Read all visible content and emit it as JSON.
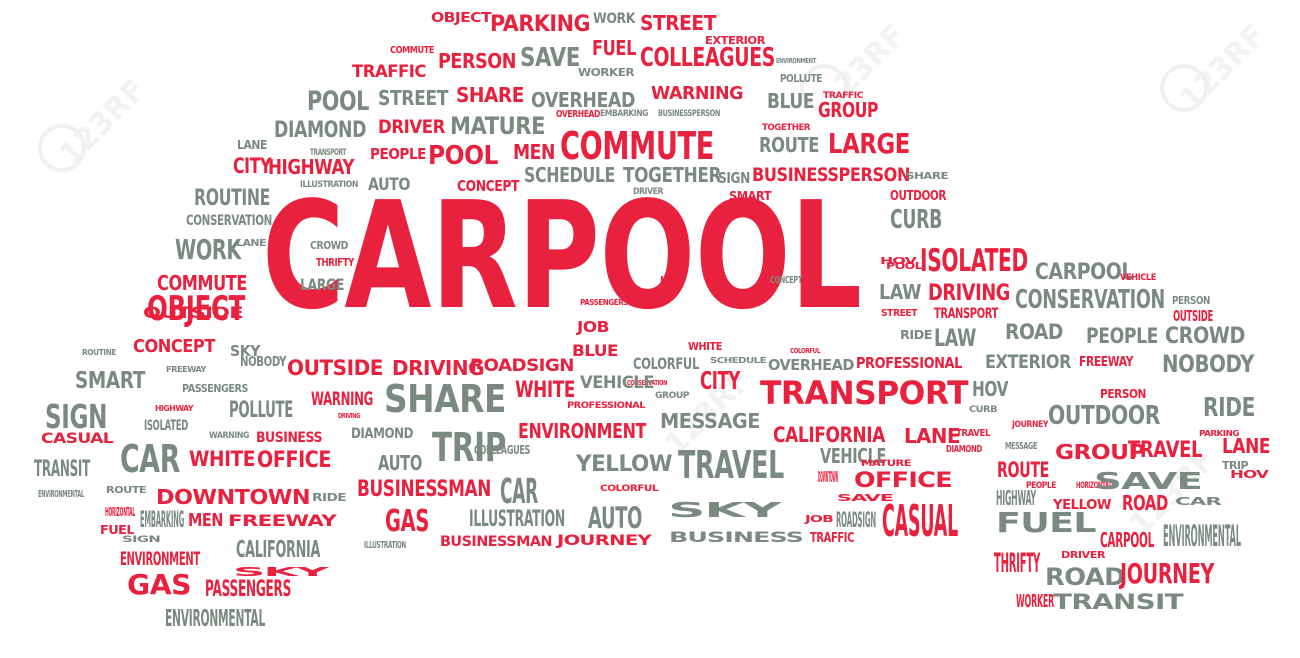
{
  "colors": {
    "red": "#e8213f",
    "gray": "#7a8a80"
  },
  "watermark": "123RF",
  "hero": "CARPOOL",
  "words": [
    [
      "OBJECT",
      "r"
    ],
    [
      "PARKING",
      "r"
    ],
    [
      "WORK",
      "g"
    ],
    [
      "STREET",
      "r"
    ],
    [
      "EXTERIOR",
      "r"
    ],
    [
      "COMMUTE",
      "r"
    ],
    [
      "PERSON",
      "r"
    ],
    [
      "SAVE",
      "g"
    ],
    [
      "FUEL",
      "r"
    ],
    [
      "COLLEAGUES",
      "r"
    ],
    [
      "ENVIRONMENT",
      "g"
    ],
    [
      "TRAFFIC",
      "r"
    ],
    [
      "WORKER",
      "g"
    ],
    [
      "POLLUTE",
      "g"
    ],
    [
      "TRAFFIC",
      "r"
    ],
    [
      "POOL",
      "g"
    ],
    [
      "STREET",
      "g"
    ],
    [
      "SHARE",
      "r"
    ],
    [
      "OVERHEAD",
      "g"
    ],
    [
      "WARNING",
      "r"
    ],
    [
      "BLUE",
      "g"
    ],
    [
      "GROUP",
      "r"
    ],
    [
      "DIAMOND",
      "g"
    ],
    [
      "DRIVER",
      "r"
    ],
    [
      "MATURE",
      "g"
    ],
    [
      "OVERHEAD",
      "r"
    ],
    [
      "EMBARKING",
      "g"
    ],
    [
      "BUSINESSPERSON",
      "g"
    ],
    [
      "TOGETHER",
      "r"
    ],
    [
      "LANE",
      "g"
    ],
    [
      "TRANSPORT",
      "g"
    ],
    [
      "CITY",
      "r"
    ],
    [
      "HIGHWAY",
      "r"
    ],
    [
      "PEOPLE",
      "r"
    ],
    [
      "POOL",
      "r"
    ],
    [
      "MEN",
      "r"
    ],
    [
      "COMMUTE",
      "r"
    ],
    [
      "ROUTE",
      "g"
    ],
    [
      "LARGE",
      "r"
    ],
    [
      "ILLUSTRATION",
      "g"
    ],
    [
      "AUTO",
      "g"
    ],
    [
      "CONCEPT",
      "r"
    ],
    [
      "SCHEDULE",
      "g"
    ],
    [
      "TOGETHER",
      "g"
    ],
    [
      "SIGN",
      "g"
    ],
    [
      "BUSINESSPERSON",
      "r"
    ],
    [
      "SHARE",
      "g"
    ],
    [
      "ROUTINE",
      "g"
    ],
    [
      "DRIVER",
      "g"
    ],
    [
      "SMART",
      "r"
    ],
    [
      "OUTDOOR",
      "r"
    ],
    [
      "CONSERVATION",
      "g"
    ],
    [
      "CURB",
      "g"
    ],
    [
      "WORK",
      "g"
    ],
    [
      "CROWD",
      "g"
    ],
    [
      "LANE",
      "g"
    ],
    [
      "THRIFTY",
      "r"
    ],
    [
      "HOV",
      "r"
    ],
    [
      "POOL",
      "r"
    ],
    [
      "ISOLATED",
      "r"
    ],
    [
      "COMMUTE",
      "r"
    ],
    [
      "LARGE",
      "g"
    ],
    [
      "LAW",
      "r"
    ],
    [
      "CONCEPT",
      "g"
    ],
    [
      "CARPOOL",
      "g"
    ],
    [
      "VEHICLE",
      "r"
    ],
    [
      "OBJECT",
      "r"
    ],
    [
      "PASSENGERS",
      "r"
    ],
    [
      "LAW",
      "g"
    ],
    [
      "DRIVING",
      "r"
    ],
    [
      "CONSERVATION",
      "g"
    ],
    [
      "PERSON",
      "g"
    ],
    [
      "OUTSIDE",
      "r"
    ],
    [
      "STREET",
      "r"
    ],
    [
      "TRANSPORT",
      "r"
    ],
    [
      "OUTSIDE",
      "r"
    ],
    [
      "JOB",
      "r"
    ],
    [
      "RIDE",
      "g"
    ],
    [
      "LAW",
      "g"
    ],
    [
      "ROAD",
      "g"
    ],
    [
      "PEOPLE",
      "g"
    ],
    [
      "CROWD",
      "g"
    ],
    [
      "CONCEPT",
      "r"
    ],
    [
      "SKY",
      "g"
    ],
    [
      "BLUE",
      "r"
    ],
    [
      "WHITE",
      "r"
    ],
    [
      "COLORFUL",
      "g"
    ],
    [
      "PROFESSIONAL",
      "r"
    ],
    [
      "ROUTINE",
      "g"
    ],
    [
      "NOBODY",
      "g"
    ],
    [
      "COLORFUL",
      "r"
    ],
    [
      "SCHEDULE",
      "g"
    ],
    [
      "EXTERIOR",
      "g"
    ],
    [
      "FREEWAY",
      "r"
    ],
    [
      "NOBODY",
      "g"
    ],
    [
      "OUTSIDE",
      "r"
    ],
    [
      "DRIVING",
      "r"
    ],
    [
      "ROADSIGN",
      "r"
    ],
    [
      "SMART",
      "g"
    ],
    [
      "FREEWAY",
      "g"
    ],
    [
      "CITY",
      "r"
    ],
    [
      "OVERHEAD",
      "g"
    ],
    [
      "CONSERVATION",
      "r"
    ],
    [
      "PASSENGERS",
      "g"
    ],
    [
      "POLLUTE",
      "g"
    ],
    [
      "WARNING",
      "r"
    ],
    [
      "SHARE",
      "g"
    ],
    [
      "WHITE",
      "r"
    ],
    [
      "VEHICLE",
      "g"
    ],
    [
      "TRANSPORT",
      "r"
    ],
    [
      "HOV",
      "g"
    ],
    [
      "PERSON",
      "r"
    ],
    [
      "SIGN",
      "g"
    ],
    [
      "HIGHWAY",
      "r"
    ],
    [
      "ISOLATED",
      "g"
    ],
    [
      "DRIVING",
      "r"
    ],
    [
      "PROFESSIONAL",
      "r"
    ],
    [
      "GROUP",
      "g"
    ],
    [
      "MESSAGE",
      "g"
    ],
    [
      "CURB",
      "g"
    ],
    [
      "OUTDOOR",
      "g"
    ],
    [
      "RIDE",
      "g"
    ],
    [
      "DIAMOND",
      "g"
    ],
    [
      "JOURNEY",
      "r"
    ],
    [
      "CASUAL",
      "r"
    ],
    [
      "WARNING",
      "g"
    ],
    [
      "BUSINESS",
      "r"
    ],
    [
      "TRIP",
      "g"
    ],
    [
      "ENVIRONMENT",
      "r"
    ],
    [
      "CALIFORNIA",
      "r"
    ],
    [
      "LANE",
      "r"
    ],
    [
      "TRAVEL",
      "r"
    ],
    [
      "PARKING",
      "r"
    ],
    [
      "MESSAGE",
      "g"
    ],
    [
      "LANE",
      "r"
    ],
    [
      "CAR",
      "g"
    ],
    [
      "WHITE",
      "r"
    ],
    [
      "OFFICE",
      "r"
    ],
    [
      "AUTO",
      "g"
    ],
    [
      "COLLEAGUES",
      "g"
    ],
    [
      "YELLOW",
      "g"
    ],
    [
      "TRAVEL",
      "g"
    ],
    [
      "VEHICLE",
      "g"
    ],
    [
      "DIAMOND",
      "r"
    ],
    [
      "ROUTE",
      "r"
    ],
    [
      "GROUP",
      "r"
    ],
    [
      "TRAVEL",
      "r"
    ],
    [
      "TRIP",
      "g"
    ],
    [
      "TRANSIT",
      "g"
    ],
    [
      "MATURE",
      "r"
    ],
    [
      "ENVIRONMENTAL",
      "g"
    ],
    [
      "ROUTE",
      "g"
    ],
    [
      "DOWNTOWN",
      "r"
    ],
    [
      "RIDE",
      "g"
    ],
    [
      "BUSINESSMAN",
      "r"
    ],
    [
      "CAR",
      "g"
    ],
    [
      "COLORFUL",
      "r"
    ],
    [
      "DOWNTOWN",
      "r"
    ],
    [
      "OFFICE",
      "r"
    ],
    [
      "HORIZONTAL",
      "r"
    ],
    [
      "PEOPLE",
      "r"
    ],
    [
      "SAVE",
      "g"
    ],
    [
      "HOV",
      "r"
    ],
    [
      "HORIZONTAL",
      "r"
    ],
    [
      "HIGHWAY",
      "g"
    ],
    [
      "SAVE",
      "r"
    ],
    [
      "YELLOW",
      "r"
    ],
    [
      "ROAD",
      "r"
    ],
    [
      "CAR",
      "g"
    ],
    [
      "FUEL",
      "r"
    ],
    [
      "EMBARKING",
      "g"
    ],
    [
      "MEN",
      "r"
    ],
    [
      "FREEWAY",
      "r"
    ],
    [
      "GAS",
      "r"
    ],
    [
      "ILLUSTRATION",
      "g"
    ],
    [
      "AUTO",
      "g"
    ],
    [
      "SKY",
      "g"
    ],
    [
      "JOB",
      "r"
    ],
    [
      "ROADSIGN",
      "g"
    ],
    [
      "CASUAL",
      "r"
    ],
    [
      "SIGN",
      "g"
    ],
    [
      "FUEL",
      "g"
    ],
    [
      "CARPOOL",
      "r"
    ],
    [
      "ENVIRONMENTAL",
      "g"
    ],
    [
      "ILLUSTRATION",
      "g"
    ],
    [
      "BUSINESSMAN",
      "r"
    ],
    [
      "JOURNEY",
      "r"
    ],
    [
      "BUSINESS",
      "g"
    ],
    [
      "TRAFFIC",
      "r"
    ],
    [
      "ENVIRONMENT",
      "r"
    ],
    [
      "CALIFORNIA",
      "g"
    ],
    [
      "SKY",
      "r"
    ],
    [
      "DRIVER",
      "r"
    ],
    [
      "THRIFTY",
      "r"
    ],
    [
      "ROAD",
      "g"
    ],
    [
      "JOURNEY",
      "r"
    ],
    [
      "GAS",
      "r"
    ],
    [
      "PASSENGERS",
      "r"
    ],
    [
      "WORKER",
      "r"
    ],
    [
      "TRANSIT",
      "g"
    ],
    [
      "ENVIRONMENTAL",
      "g"
    ]
  ]
}
